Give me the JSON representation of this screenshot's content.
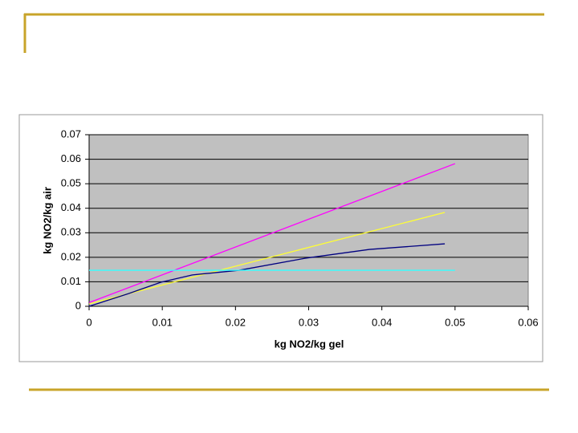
{
  "chart_data": {
    "type": "line",
    "xlabel": "kg NO2/kg gel",
    "ylabel": "kg NO2/kg air",
    "xlim": [
      0,
      0.06
    ],
    "xticks": [
      0,
      0.01,
      0.02,
      0.03,
      0.04,
      0.05,
      0.06
    ],
    "ylim": [
      0,
      0.07
    ],
    "yticks": [
      0,
      0.01,
      0.02,
      0.03,
      0.04,
      0.05,
      0.06,
      0.07
    ],
    "grid": true,
    "series": [
      {
        "color": "#ff00ff",
        "x": [
          0,
          0.05
        ],
        "values": [
          0.0015,
          0.0582
        ]
      },
      {
        "color": "#ffff33",
        "x": [
          0,
          0.0486
        ],
        "values": [
          0.001,
          0.0383
        ]
      },
      {
        "color": "#000080",
        "x": [
          0,
          0.0054,
          0.0098,
          0.0141,
          0.0205,
          0.0295,
          0.0383,
          0.0486
        ],
        "values": [
          0,
          0.0052,
          0.0098,
          0.0128,
          0.0147,
          0.0196,
          0.0232,
          0.0255
        ]
      },
      {
        "color": "#33ffff",
        "x": [
          0,
          0.05
        ],
        "values": [
          0.0147,
          0.0147
        ]
      }
    ]
  }
}
